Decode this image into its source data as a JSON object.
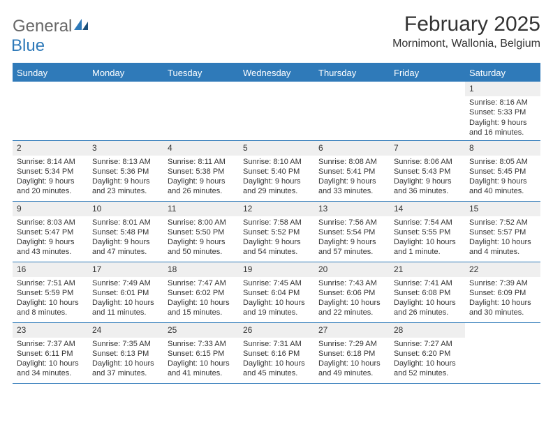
{
  "logo": {
    "line1": "General",
    "line2": "Blue",
    "brand_color": "#2f7ab9",
    "grey": "#666666"
  },
  "title": "February 2025",
  "location": "Mornimont, Wallonia, Belgium",
  "colors": {
    "header_bg": "#2f7ab9",
    "header_text": "#ffffff",
    "daynum_bg": "#efefef",
    "rule": "#2f7ab9",
    "text": "#333333",
    "background": "#ffffff"
  },
  "columns": [
    "Sunday",
    "Monday",
    "Tuesday",
    "Wednesday",
    "Thursday",
    "Friday",
    "Saturday"
  ],
  "weeks": [
    [
      {
        "empty": true
      },
      {
        "empty": true
      },
      {
        "empty": true
      },
      {
        "empty": true
      },
      {
        "empty": true
      },
      {
        "empty": true
      },
      {
        "day": "1",
        "sunrise": "8:16 AM",
        "sunset": "5:33 PM",
        "daylight": "9 hours and 16 minutes."
      }
    ],
    [
      {
        "day": "2",
        "sunrise": "8:14 AM",
        "sunset": "5:34 PM",
        "daylight": "9 hours and 20 minutes."
      },
      {
        "day": "3",
        "sunrise": "8:13 AM",
        "sunset": "5:36 PM",
        "daylight": "9 hours and 23 minutes."
      },
      {
        "day": "4",
        "sunrise": "8:11 AM",
        "sunset": "5:38 PM",
        "daylight": "9 hours and 26 minutes."
      },
      {
        "day": "5",
        "sunrise": "8:10 AM",
        "sunset": "5:40 PM",
        "daylight": "9 hours and 29 minutes."
      },
      {
        "day": "6",
        "sunrise": "8:08 AM",
        "sunset": "5:41 PM",
        "daylight": "9 hours and 33 minutes."
      },
      {
        "day": "7",
        "sunrise": "8:06 AM",
        "sunset": "5:43 PM",
        "daylight": "9 hours and 36 minutes."
      },
      {
        "day": "8",
        "sunrise": "8:05 AM",
        "sunset": "5:45 PM",
        "daylight": "9 hours and 40 minutes."
      }
    ],
    [
      {
        "day": "9",
        "sunrise": "8:03 AM",
        "sunset": "5:47 PM",
        "daylight": "9 hours and 43 minutes."
      },
      {
        "day": "10",
        "sunrise": "8:01 AM",
        "sunset": "5:48 PM",
        "daylight": "9 hours and 47 minutes."
      },
      {
        "day": "11",
        "sunrise": "8:00 AM",
        "sunset": "5:50 PM",
        "daylight": "9 hours and 50 minutes."
      },
      {
        "day": "12",
        "sunrise": "7:58 AM",
        "sunset": "5:52 PM",
        "daylight": "9 hours and 54 minutes."
      },
      {
        "day": "13",
        "sunrise": "7:56 AM",
        "sunset": "5:54 PM",
        "daylight": "9 hours and 57 minutes."
      },
      {
        "day": "14",
        "sunrise": "7:54 AM",
        "sunset": "5:55 PM",
        "daylight": "10 hours and 1 minute."
      },
      {
        "day": "15",
        "sunrise": "7:52 AM",
        "sunset": "5:57 PM",
        "daylight": "10 hours and 4 minutes."
      }
    ],
    [
      {
        "day": "16",
        "sunrise": "7:51 AM",
        "sunset": "5:59 PM",
        "daylight": "10 hours and 8 minutes."
      },
      {
        "day": "17",
        "sunrise": "7:49 AM",
        "sunset": "6:01 PM",
        "daylight": "10 hours and 11 minutes."
      },
      {
        "day": "18",
        "sunrise": "7:47 AM",
        "sunset": "6:02 PM",
        "daylight": "10 hours and 15 minutes."
      },
      {
        "day": "19",
        "sunrise": "7:45 AM",
        "sunset": "6:04 PM",
        "daylight": "10 hours and 19 minutes."
      },
      {
        "day": "20",
        "sunrise": "7:43 AM",
        "sunset": "6:06 PM",
        "daylight": "10 hours and 22 minutes."
      },
      {
        "day": "21",
        "sunrise": "7:41 AM",
        "sunset": "6:08 PM",
        "daylight": "10 hours and 26 minutes."
      },
      {
        "day": "22",
        "sunrise": "7:39 AM",
        "sunset": "6:09 PM",
        "daylight": "10 hours and 30 minutes."
      }
    ],
    [
      {
        "day": "23",
        "sunrise": "7:37 AM",
        "sunset": "6:11 PM",
        "daylight": "10 hours and 34 minutes."
      },
      {
        "day": "24",
        "sunrise": "7:35 AM",
        "sunset": "6:13 PM",
        "daylight": "10 hours and 37 minutes."
      },
      {
        "day": "25",
        "sunrise": "7:33 AM",
        "sunset": "6:15 PM",
        "daylight": "10 hours and 41 minutes."
      },
      {
        "day": "26",
        "sunrise": "7:31 AM",
        "sunset": "6:16 PM",
        "daylight": "10 hours and 45 minutes."
      },
      {
        "day": "27",
        "sunrise": "7:29 AM",
        "sunset": "6:18 PM",
        "daylight": "10 hours and 49 minutes."
      },
      {
        "day": "28",
        "sunrise": "7:27 AM",
        "sunset": "6:20 PM",
        "daylight": "10 hours and 52 minutes."
      },
      {
        "empty": true
      }
    ]
  ],
  "labels": {
    "sunrise": "Sunrise:",
    "sunset": "Sunset:",
    "daylight": "Daylight:"
  }
}
